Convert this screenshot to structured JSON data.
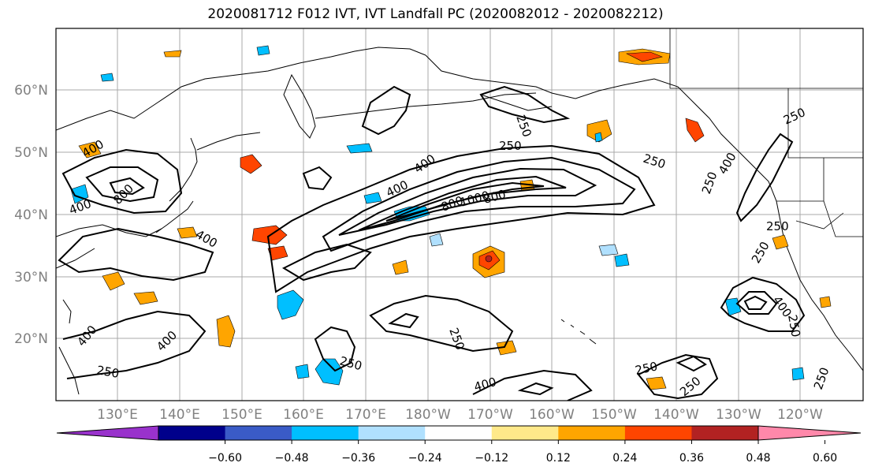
{
  "title": "2020081712 F012 IVT, IVT Landfall PC (2020082012 - 2020082212)",
  "map": {
    "lat_labels": [
      "60°N",
      "50°N",
      "40°N",
      "30°N",
      "20°N"
    ],
    "lon_labels": [
      "130°E",
      "140°E",
      "150°E",
      "160°E",
      "170°E",
      "180°W",
      "170°W",
      "160°W",
      "150°W",
      "140°W",
      "130°W",
      "120°W"
    ],
    "contour_labels": [
      "250",
      "250",
      "250",
      "250",
      "250",
      "250",
      "250",
      "250",
      "250",
      "250",
      "250",
      "250",
      "250",
      "250",
      "400",
      "400",
      "400",
      "400",
      "400",
      "400",
      "400",
      "400",
      "400",
      "400",
      "800",
      "800",
      "800",
      "1000"
    ]
  },
  "colorbar": {
    "ticks": [
      "−0.60",
      "−0.48",
      "−0.36",
      "−0.24",
      "−0.12",
      "0.12",
      "0.24",
      "0.36",
      "0.48",
      "0.60"
    ],
    "colors": [
      "#9932cc",
      "#00008b",
      "#3a5bc7",
      "#00bfff",
      "#b0e0fe",
      "#ffffff",
      "#ffe98a",
      "#ffa500",
      "#ff4500",
      "#b22222",
      "#ff88aa"
    ]
  }
}
